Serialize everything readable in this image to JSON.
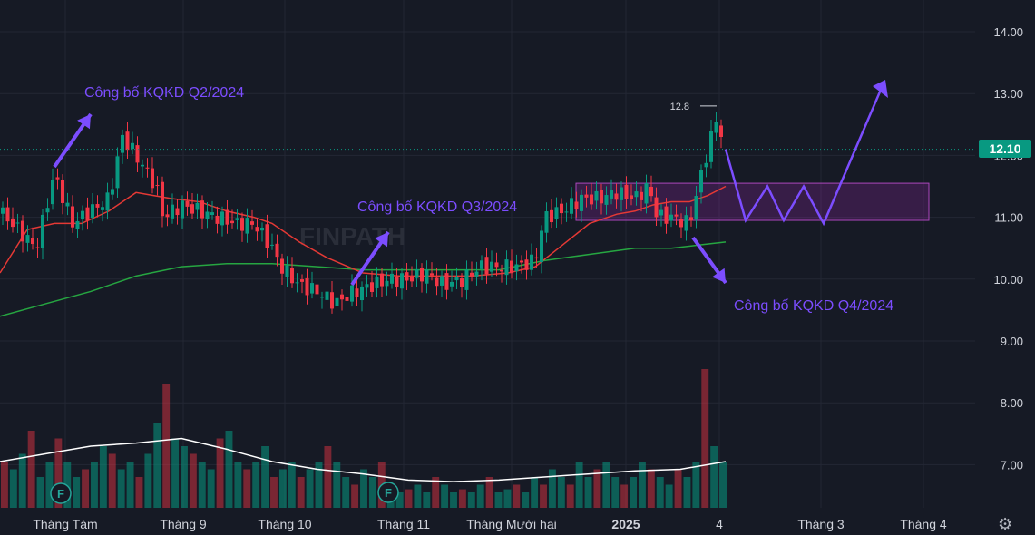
{
  "chart_data": {
    "type": "candlestick",
    "y_axis": {
      "ticks": [
        "14.00",
        "13.00",
        "12.00",
        "11.00",
        "10.00",
        "9.00",
        "8.00",
        "7.00"
      ],
      "ylim": [
        6.3,
        14.5
      ]
    },
    "x_axis": {
      "labels": [
        "Tháng Tám",
        "Tháng 9",
        "Tháng 10",
        "Tháng 11",
        "Tháng Mười hai",
        "2025",
        "4",
        "Tháng 3",
        "Tháng 4"
      ]
    },
    "last_price": "12.10",
    "high_marker": "12.8",
    "annotations": {
      "q2": "Công bố KQKD Q2/2024",
      "q3": "Công bố KQKD Q3/2024",
      "q4": "Công bố KQKD Q4/2024"
    },
    "watermark": "FINPATH",
    "event_markers": [
      "F",
      "F"
    ],
    "close_path": [
      [
        0,
        11.1
      ],
      [
        40,
        10.5
      ],
      [
        60,
        11.7
      ],
      [
        80,
        10.9
      ],
      [
        100,
        11.1
      ],
      [
        120,
        11.3
      ],
      [
        135,
        12.3
      ],
      [
        150,
        12.0
      ],
      [
        172,
        11.5
      ],
      [
        180,
        11.0
      ],
      [
        200,
        11.2
      ],
      [
        220,
        11.1
      ],
      [
        240,
        11.0
      ],
      [
        260,
        10.9
      ],
      [
        280,
        10.9
      ],
      [
        300,
        10.5
      ],
      [
        310,
        10.2
      ],
      [
        330,
        9.9
      ],
      [
        350,
        9.8
      ],
      [
        370,
        9.6
      ],
      [
        390,
        9.8
      ],
      [
        410,
        9.9
      ],
      [
        430,
        10.0
      ],
      [
        450,
        10.0
      ],
      [
        470,
        10.1
      ],
      [
        490,
        9.9
      ],
      [
        510,
        10.0
      ],
      [
        530,
        10.2
      ],
      [
        550,
        10.2
      ],
      [
        570,
        10.2
      ],
      [
        590,
        10.3
      ],
      [
        600,
        11.0
      ],
      [
        620,
        11.1
      ],
      [
        640,
        11.3
      ],
      [
        660,
        11.3
      ],
      [
        680,
        11.4
      ],
      [
        700,
        11.3
      ],
      [
        715,
        11.5
      ],
      [
        725,
        11.0
      ],
      [
        740,
        11.0
      ],
      [
        760,
        10.9
      ],
      [
        770,
        11.5
      ],
      [
        782,
        12.2
      ],
      [
        790,
        12.6
      ],
      [
        800,
        12.1
      ]
    ],
    "ma_fast": [
      [
        0,
        10.1
      ],
      [
        30,
        10.8
      ],
      [
        60,
        10.9
      ],
      [
        90,
        10.9
      ],
      [
        120,
        11.1
      ],
      [
        150,
        11.4
      ],
      [
        170,
        11.35
      ],
      [
        190,
        11.3
      ],
      [
        220,
        11.25
      ],
      [
        250,
        11.1
      ],
      [
        280,
        11.0
      ],
      [
        300,
        10.9
      ],
      [
        330,
        10.6
      ],
      [
        360,
        10.35
      ],
      [
        400,
        10.1
      ],
      [
        440,
        10.05
      ],
      [
        480,
        10.05
      ],
      [
        520,
        10.05
      ],
      [
        560,
        10.1
      ],
      [
        590,
        10.2
      ],
      [
        620,
        10.55
      ],
      [
        650,
        10.9
      ],
      [
        680,
        11.05
      ],
      [
        700,
        11.1
      ],
      [
        720,
        11.2
      ],
      [
        740,
        11.25
      ],
      [
        760,
        11.25
      ],
      [
        780,
        11.35
      ],
      [
        800,
        11.5
      ]
    ],
    "ma_slow": [
      [
        0,
        9.4
      ],
      [
        50,
        9.6
      ],
      [
        100,
        9.8
      ],
      [
        150,
        10.05
      ],
      [
        200,
        10.2
      ],
      [
        250,
        10.25
      ],
      [
        300,
        10.25
      ],
      [
        350,
        10.2
      ],
      [
        400,
        10.15
      ],
      [
        450,
        10.15
      ],
      [
        500,
        10.15
      ],
      [
        550,
        10.15
      ],
      [
        600,
        10.3
      ],
      [
        650,
        10.4
      ],
      [
        700,
        10.5
      ],
      [
        740,
        10.5
      ],
      [
        770,
        10.55
      ],
      [
        800,
        10.6
      ]
    ],
    "volume_relative": [
      0.3,
      0.25,
      0.35,
      0.5,
      0.2,
      0.3,
      0.45,
      0.3,
      0.2,
      0.25,
      0.3,
      0.4,
      0.35,
      0.25,
      0.3,
      0.2,
      0.35,
      0.55,
      0.8,
      0.45,
      0.4,
      0.35,
      0.3,
      0.25,
      0.45,
      0.5,
      0.3,
      0.25,
      0.3,
      0.4,
      0.2,
      0.25,
      0.3,
      0.2,
      0.25,
      0.3,
      0.4,
      0.3,
      0.2,
      0.15,
      0.25,
      0.2,
      0.3,
      0.15,
      0.1,
      0.12,
      0.15,
      0.1,
      0.2,
      0.15,
      0.1,
      0.12,
      0.1,
      0.15,
      0.2,
      0.1,
      0.12,
      0.15,
      0.1,
      0.2,
      0.15,
      0.25,
      0.2,
      0.15,
      0.3,
      0.2,
      0.25,
      0.3,
      0.2,
      0.15,
      0.2,
      0.3,
      0.25,
      0.2,
      0.15,
      0.25,
      0.2,
      0.3,
      0.9,
      0.4,
      0.3
    ],
    "volume_avg": [
      [
        0,
        0.3
      ],
      [
        50,
        0.35
      ],
      [
        100,
        0.4
      ],
      [
        150,
        0.42
      ],
      [
        200,
        0.45
      ],
      [
        250,
        0.38
      ],
      [
        300,
        0.3
      ],
      [
        350,
        0.25
      ],
      [
        400,
        0.22
      ],
      [
        450,
        0.18
      ],
      [
        500,
        0.17
      ],
      [
        550,
        0.18
      ],
      [
        600,
        0.2
      ],
      [
        650,
        0.22
      ],
      [
        700,
        0.24
      ],
      [
        750,
        0.25
      ],
      [
        800,
        0.3
      ]
    ],
    "box": {
      "from": 11.55,
      "to": 10.95
    },
    "projection": [
      [
        800,
        12.1
      ],
      [
        822,
        10.95
      ],
      [
        846,
        11.5
      ],
      [
        864,
        10.95
      ],
      [
        886,
        11.5
      ],
      [
        908,
        10.9
      ],
      [
        975,
        13.2
      ]
    ]
  }
}
